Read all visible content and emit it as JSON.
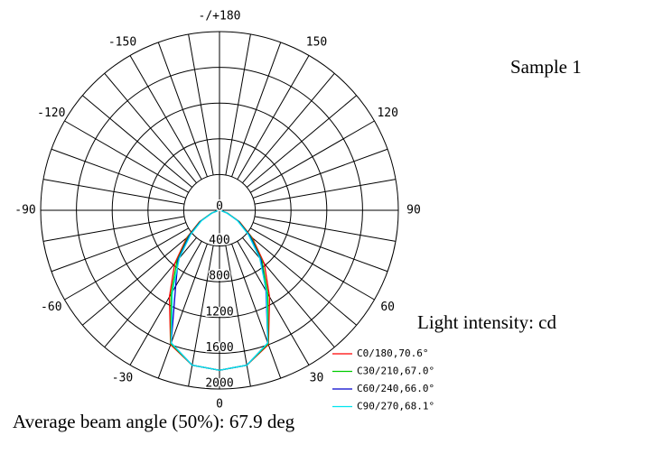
{
  "chart_data": {
    "type": "polar",
    "title": "Sample 1",
    "unit_label": "Light intensity: cd",
    "footer": "Average beam angle (50%): 67.9 deg",
    "x": [
      -90,
      -80,
      -70,
      -60,
      -50,
      -40,
      -30,
      -20,
      -10,
      0,
      10,
      20,
      30,
      40,
      50,
      60,
      70,
      80,
      90
    ],
    "series": [
      {
        "name": "C0/180,70.6°",
        "color": "#ff0000",
        "values": [
          0,
          20,
          100,
          260,
          480,
          780,
          1120,
          1600,
          1760,
          1790,
          1760,
          1600,
          1120,
          780,
          480,
          260,
          100,
          20,
          0
        ]
      },
      {
        "name": "C30/210,67.0°",
        "color": "#00cc00",
        "values": [
          0,
          20,
          95,
          250,
          460,
          740,
          1080,
          1590,
          1760,
          1790,
          1760,
          1590,
          1080,
          740,
          460,
          250,
          95,
          20,
          0
        ]
      },
      {
        "name": "C60/240,66.0°",
        "color": "#0000cc",
        "values": [
          0,
          20,
          90,
          240,
          440,
          720,
          980,
          1580,
          1760,
          1790,
          1760,
          1580,
          1040,
          720,
          440,
          240,
          90,
          20,
          0
        ]
      },
      {
        "name": "C90/270,68.1°",
        "color": "#00e5ee",
        "values": [
          0,
          20,
          90,
          230,
          420,
          700,
          1050,
          1580,
          1760,
          1790,
          1760,
          1580,
          1050,
          700,
          420,
          230,
          90,
          20,
          0
        ]
      }
    ],
    "rlim": [
      0,
      2000
    ],
    "rticks": [
      0,
      400,
      800,
      1200,
      1600,
      2000
    ],
    "angle_ticks": [
      {
        "value": 180,
        "label": "-/+180"
      },
      150,
      120,
      90,
      60,
      30,
      0,
      -30,
      -60,
      -90,
      -120,
      -150
    ],
    "angle_grid_step": 10
  }
}
